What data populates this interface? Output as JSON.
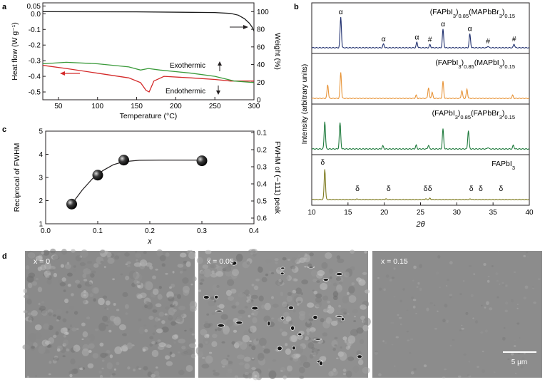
{
  "panels": {
    "a": "a",
    "b": "b",
    "c": "c",
    "d": "d"
  },
  "colors": {
    "axis": "#231f20",
    "green": "#3a9a3a",
    "red": "#d42a2a",
    "tga": "#1a1a1a",
    "navy": "#1f2f6e",
    "orange": "#e8953a",
    "dkgreen": "#1e7a3c",
    "olive": "#7d7a1e",
    "sem1": "#8a8a8a",
    "sem2": "#909090",
    "sem3": "#8c8c8c"
  },
  "chart_data": [
    {
      "id": "a",
      "type": "line",
      "xlabel": "Temperature (°C)",
      "ylabel": "Heat flow (W g⁻¹)",
      "y2label": "Weight (%)",
      "xlim": [
        30,
        300
      ],
      "ylim": [
        -0.55,
        0.07
      ],
      "y2lim": [
        0,
        110
      ],
      "xticks": [
        "50",
        "100",
        "150",
        "200",
        "250",
        "300"
      ],
      "yticks": [
        "0.05",
        "0.0",
        "-0.1",
        "-0.2",
        "-0.3",
        "-0.4",
        "-0.5"
      ],
      "y2ticks": [
        "100",
        "80",
        "60",
        "40",
        "20",
        "0"
      ],
      "annotations": [
        "Exothermic",
        "Endothermic"
      ],
      "series": [
        {
          "color": "red",
          "x": [
            30,
            60,
            100,
            140,
            155,
            162,
            166,
            172,
            185,
            220,
            250,
            270,
            300
          ],
          "y": [
            -0.33,
            -0.35,
            -0.38,
            -0.41,
            -0.44,
            -0.49,
            -0.5,
            -0.43,
            -0.4,
            -0.41,
            -0.42,
            -0.43,
            -0.43
          ]
        },
        {
          "color": "green",
          "x": [
            30,
            60,
            100,
            140,
            155,
            165,
            180,
            220,
            250,
            275,
            300
          ],
          "y": [
            -0.32,
            -0.31,
            -0.32,
            -0.34,
            -0.36,
            -0.35,
            -0.36,
            -0.38,
            -0.4,
            -0.43,
            -0.44
          ]
        },
        {
          "color": "tga",
          "axis": "y2",
          "x": [
            30,
            150,
            250,
            270,
            280,
            288,
            294,
            298,
            300
          ],
          "y": [
            100,
            99.8,
            99,
            98,
            96,
            92,
            87,
            82,
            78
          ]
        }
      ]
    },
    {
      "id": "b",
      "type": "line",
      "xlabel": "2θ",
      "ylabel": "Intensity (arbitrary units)",
      "xlim": [
        10,
        40
      ],
      "xticks": [
        "10",
        "15",
        "20",
        "25",
        "30",
        "35",
        "40"
      ],
      "panels": [
        {
          "label_main": "(FAPbI",
          "label_rest": ")",
          "label_parts": [
            "(FAPbI",
            "3",
            ")",
            "0.85",
            "(MAPbBr",
            "3",
            ")",
            "0.15"
          ],
          "color": "navy",
          "peaks": [
            {
              "x": 14.0,
              "h": 1.0
            },
            {
              "x": 19.9,
              "h": 0.12
            },
            {
              "x": 24.5,
              "h": 0.18
            },
            {
              "x": 26.3,
              "h": 0.1
            },
            {
              "x": 28.1,
              "h": 0.6
            },
            {
              "x": 31.8,
              "h": 0.45
            },
            {
              "x": 34.3,
              "h": 0.05
            },
            {
              "x": 37.9,
              "h": 0.12
            }
          ],
          "markers": [
            {
              "x": 14.0,
              "t": "α"
            },
            {
              "x": 19.9,
              "t": "α"
            },
            {
              "x": 24.5,
              "t": "α"
            },
            {
              "x": 26.3,
              "t": "#"
            },
            {
              "x": 28.1,
              "t": "α"
            },
            {
              "x": 31.8,
              "t": "α"
            },
            {
              "x": 34.3,
              "t": "#"
            },
            {
              "x": 37.9,
              "t": "#"
            }
          ]
        },
        {
          "label_parts": [
            "(FAPbI",
            "3",
            ")",
            "0.85",
            "(MAPbI",
            "3",
            ")",
            "0.15"
          ],
          "color": "orange",
          "peaks": [
            {
              "x": 12.2,
              "h": 0.45
            },
            {
              "x": 14.0,
              "h": 0.85
            },
            {
              "x": 24.4,
              "h": 0.1
            },
            {
              "x": 26.1,
              "h": 0.35
            },
            {
              "x": 26.6,
              "h": 0.2
            },
            {
              "x": 28.1,
              "h": 0.55
            },
            {
              "x": 30.7,
              "h": 0.25
            },
            {
              "x": 31.4,
              "h": 0.3
            },
            {
              "x": 37.7,
              "h": 0.1
            }
          ],
          "markers": []
        },
        {
          "label_parts": [
            "(FAPbI",
            "3",
            ")",
            "0.85",
            "(FAPbBr",
            "3",
            ")",
            "0.15"
          ],
          "color": "dkgreen",
          "peaks": [
            {
              "x": 11.8,
              "h": 0.9
            },
            {
              "x": 13.9,
              "h": 0.85
            },
            {
              "x": 19.8,
              "h": 0.1
            },
            {
              "x": 24.4,
              "h": 0.12
            },
            {
              "x": 26.1,
              "h": 0.12
            },
            {
              "x": 28.1,
              "h": 0.65
            },
            {
              "x": 31.6,
              "h": 0.6
            },
            {
              "x": 34.3,
              "h": 0.05
            },
            {
              "x": 37.8,
              "h": 0.12
            }
          ],
          "markers": []
        },
        {
          "label_parts": [
            "FAPbI",
            "3",
            "",
            "",
            "",
            "",
            "",
            ""
          ],
          "color": "olive",
          "peaks": [
            {
              "x": 11.8,
              "h": 1.0
            },
            {
              "x": 16.3,
              "h": 0.02
            },
            {
              "x": 20.2,
              "h": 0.02
            },
            {
              "x": 25.7,
              "h": 0.02
            },
            {
              "x": 26.3,
              "h": 0.04
            },
            {
              "x": 31.9,
              "h": 0.02
            }
          ],
          "markers": [
            {
              "x": 11.5,
              "t": "δ"
            },
            {
              "x": 16.3,
              "t": "δ"
            },
            {
              "x": 20.6,
              "t": "δ"
            },
            {
              "x": 25.7,
              "t": "δ"
            },
            {
              "x": 26.3,
              "t": "δ"
            },
            {
              "x": 32.0,
              "t": "δ"
            },
            {
              "x": 33.3,
              "t": "δ"
            },
            {
              "x": 36.1,
              "t": "δ"
            }
          ]
        }
      ]
    },
    {
      "id": "c",
      "type": "scatter",
      "xlabel": "x",
      "ylabel": "Reciprocal of FWHM",
      "y2label": "FWHM of (−111) peak",
      "xlim": [
        0.0,
        0.4
      ],
      "ylim": [
        1,
        5
      ],
      "y2lim": [
        0.65,
        0.1
      ],
      "xticks": [
        "0.0",
        "0.1",
        "0.2",
        "0.3",
        "0.4"
      ],
      "yticks": [
        "1",
        "2",
        "3",
        "4",
        "5"
      ],
      "y2ticks": [
        "0.1",
        "0.2",
        "0.3",
        "0.4",
        "0.5",
        "0.6"
      ],
      "x": [
        0.05,
        0.1,
        0.15,
        0.3
      ],
      "y": [
        1.85,
        3.1,
        3.75,
        3.72
      ],
      "fit": {
        "x": [
          0.05,
          0.07,
          0.09,
          0.11,
          0.13,
          0.15,
          0.18,
          0.22,
          0.26,
          0.3
        ],
        "y": [
          1.85,
          2.45,
          2.95,
          3.3,
          3.55,
          3.68,
          3.74,
          3.75,
          3.75,
          3.75
        ]
      }
    }
  ],
  "sem": {
    "panes": [
      {
        "label": "x = 0"
      },
      {
        "label": "x = 0.05"
      },
      {
        "label": "x = 0.15"
      }
    ],
    "scale_label": "5 μm"
  }
}
